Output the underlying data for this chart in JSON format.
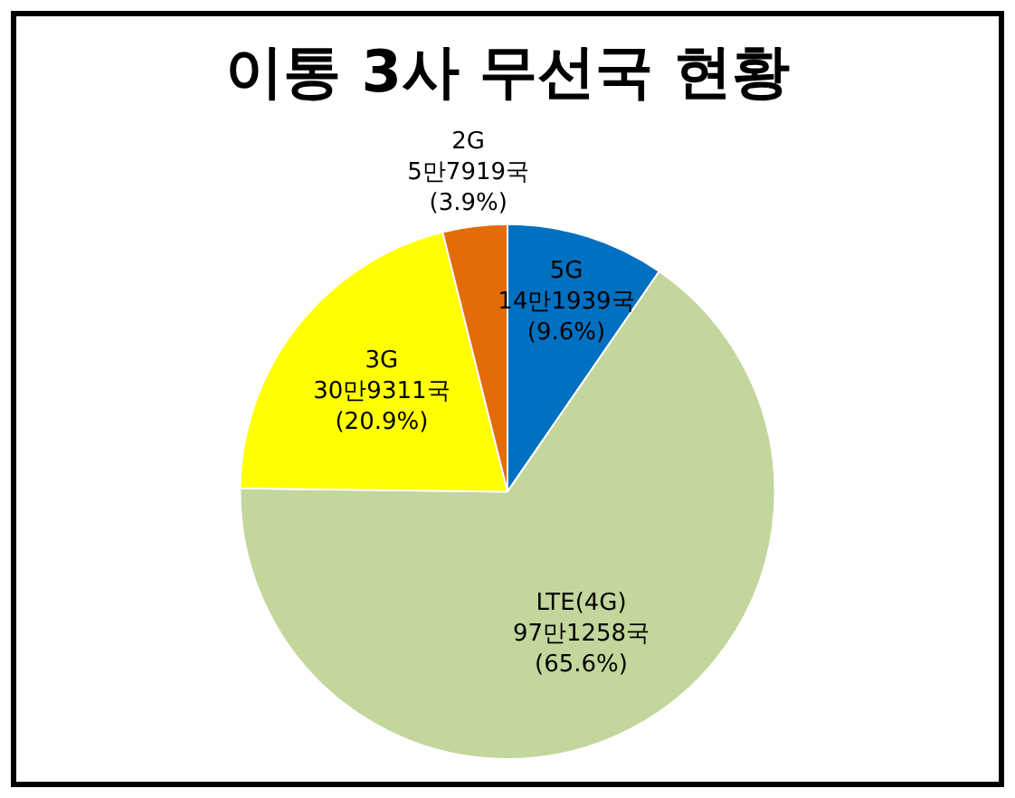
{
  "chart_data": {
    "type": "pie",
    "title": "이통 3사 무선국 현황",
    "categories": [
      "5G",
      "LTE(4G)",
      "3G",
      "2G"
    ],
    "values": [
      9.6,
      65.6,
      20.9,
      3.9
    ],
    "value_labels": [
      "14만1939국\n(9.6%)",
      "97만1258국\n(65.6%)",
      "30만9311국\n(20.9%)",
      "5만7919국\n(3.9%)"
    ],
    "colors": [
      "#0070c0",
      "#c3d69b",
      "#ffff00",
      "#e36c09"
    ],
    "legend": false
  }
}
